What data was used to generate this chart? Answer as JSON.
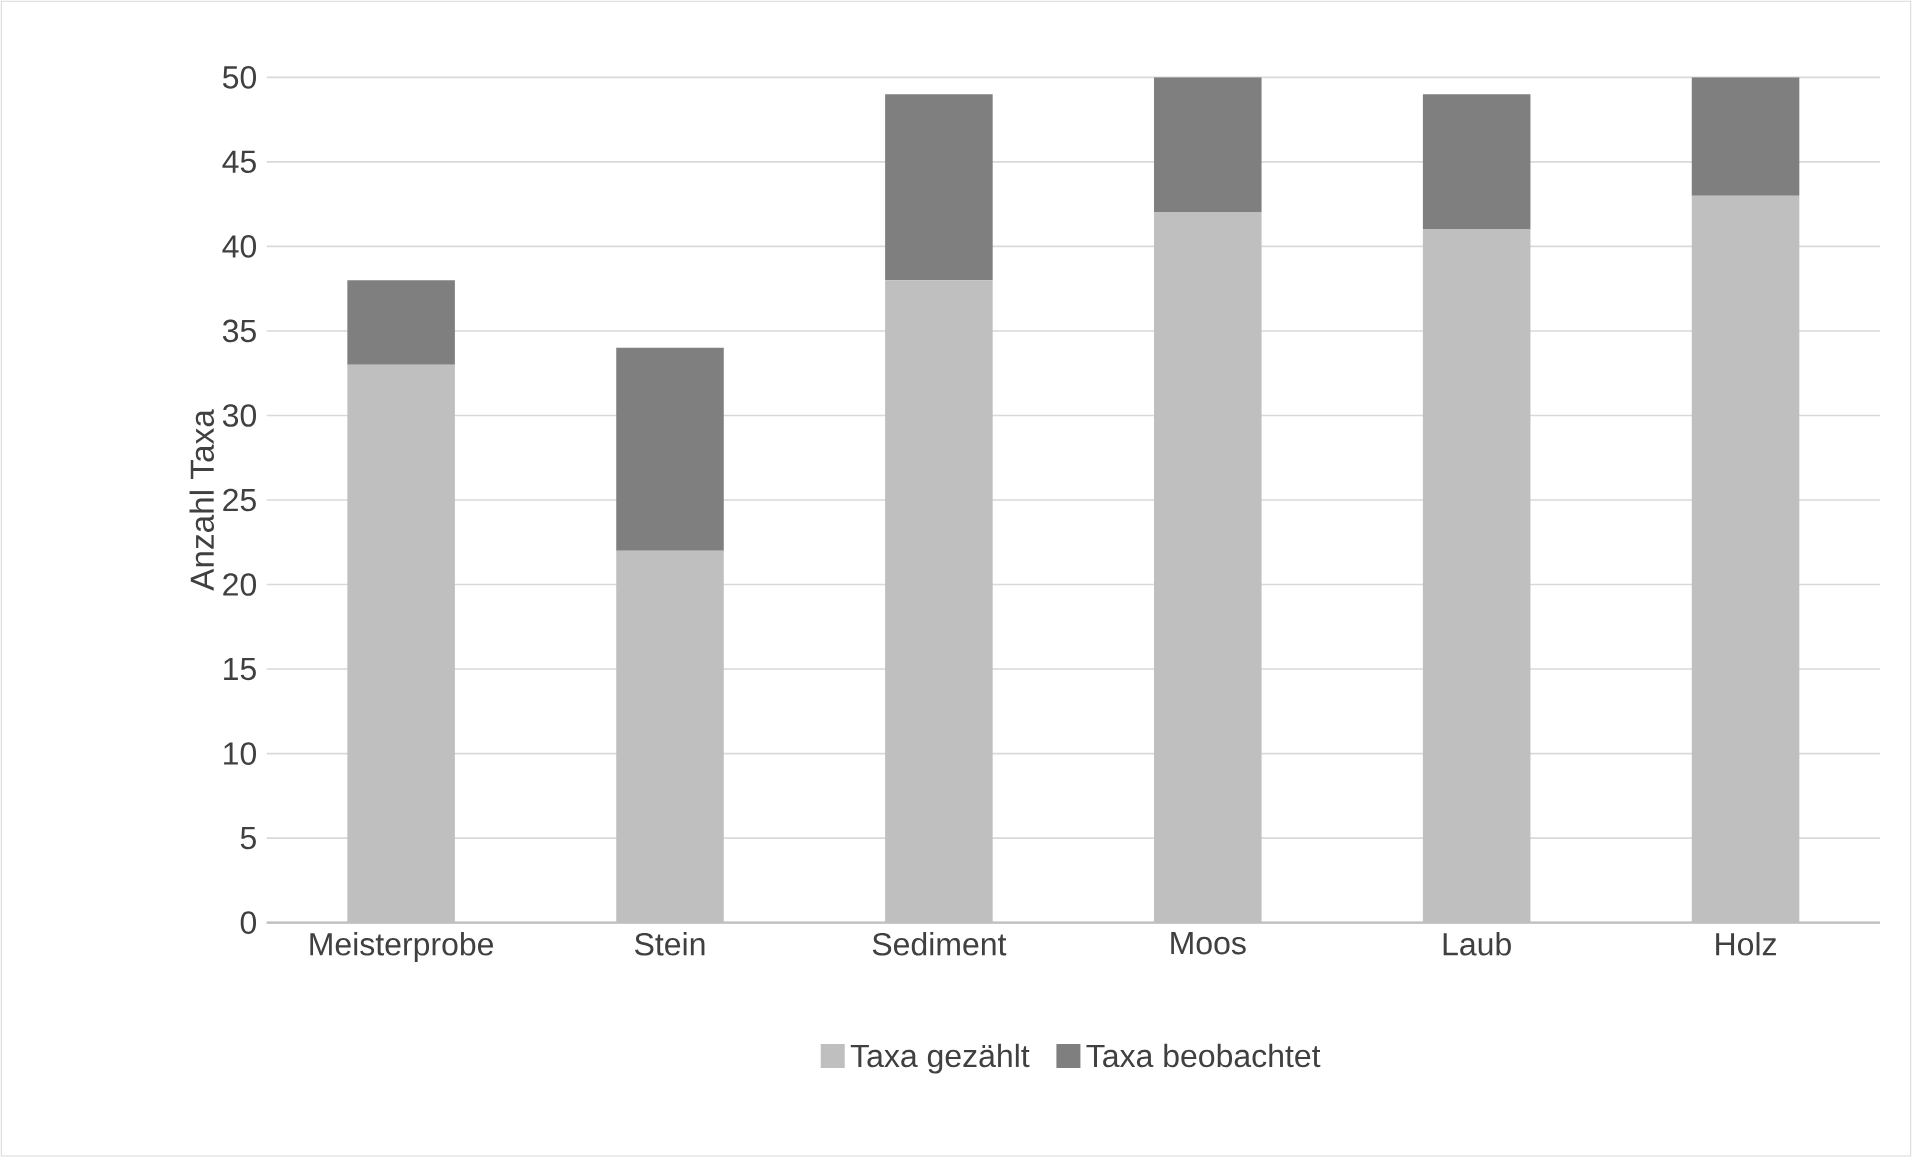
{
  "chart_data": {
    "type": "bar",
    "stacked": true,
    "ylabel": "Anzahl Taxa",
    "categories": [
      "Meisterprobe",
      "Stein",
      "Sediment",
      "Moos",
      "Laub",
      "Holz"
    ],
    "series": [
      {
        "name": "Taxa gezählt",
        "color": "#bfbfbf",
        "values": [
          33,
          22,
          38,
          42,
          41,
          43
        ]
      },
      {
        "name": "Taxa beobachtet",
        "color": "#7f7f7f",
        "values": [
          5,
          12,
          11,
          8,
          8,
          7
        ]
      }
    ],
    "ylim": [
      0,
      50
    ],
    "yticks": [
      0,
      5,
      10,
      15,
      20,
      25,
      30,
      35,
      40,
      45,
      50
    ],
    "grid": "y",
    "legend": "bottom"
  }
}
